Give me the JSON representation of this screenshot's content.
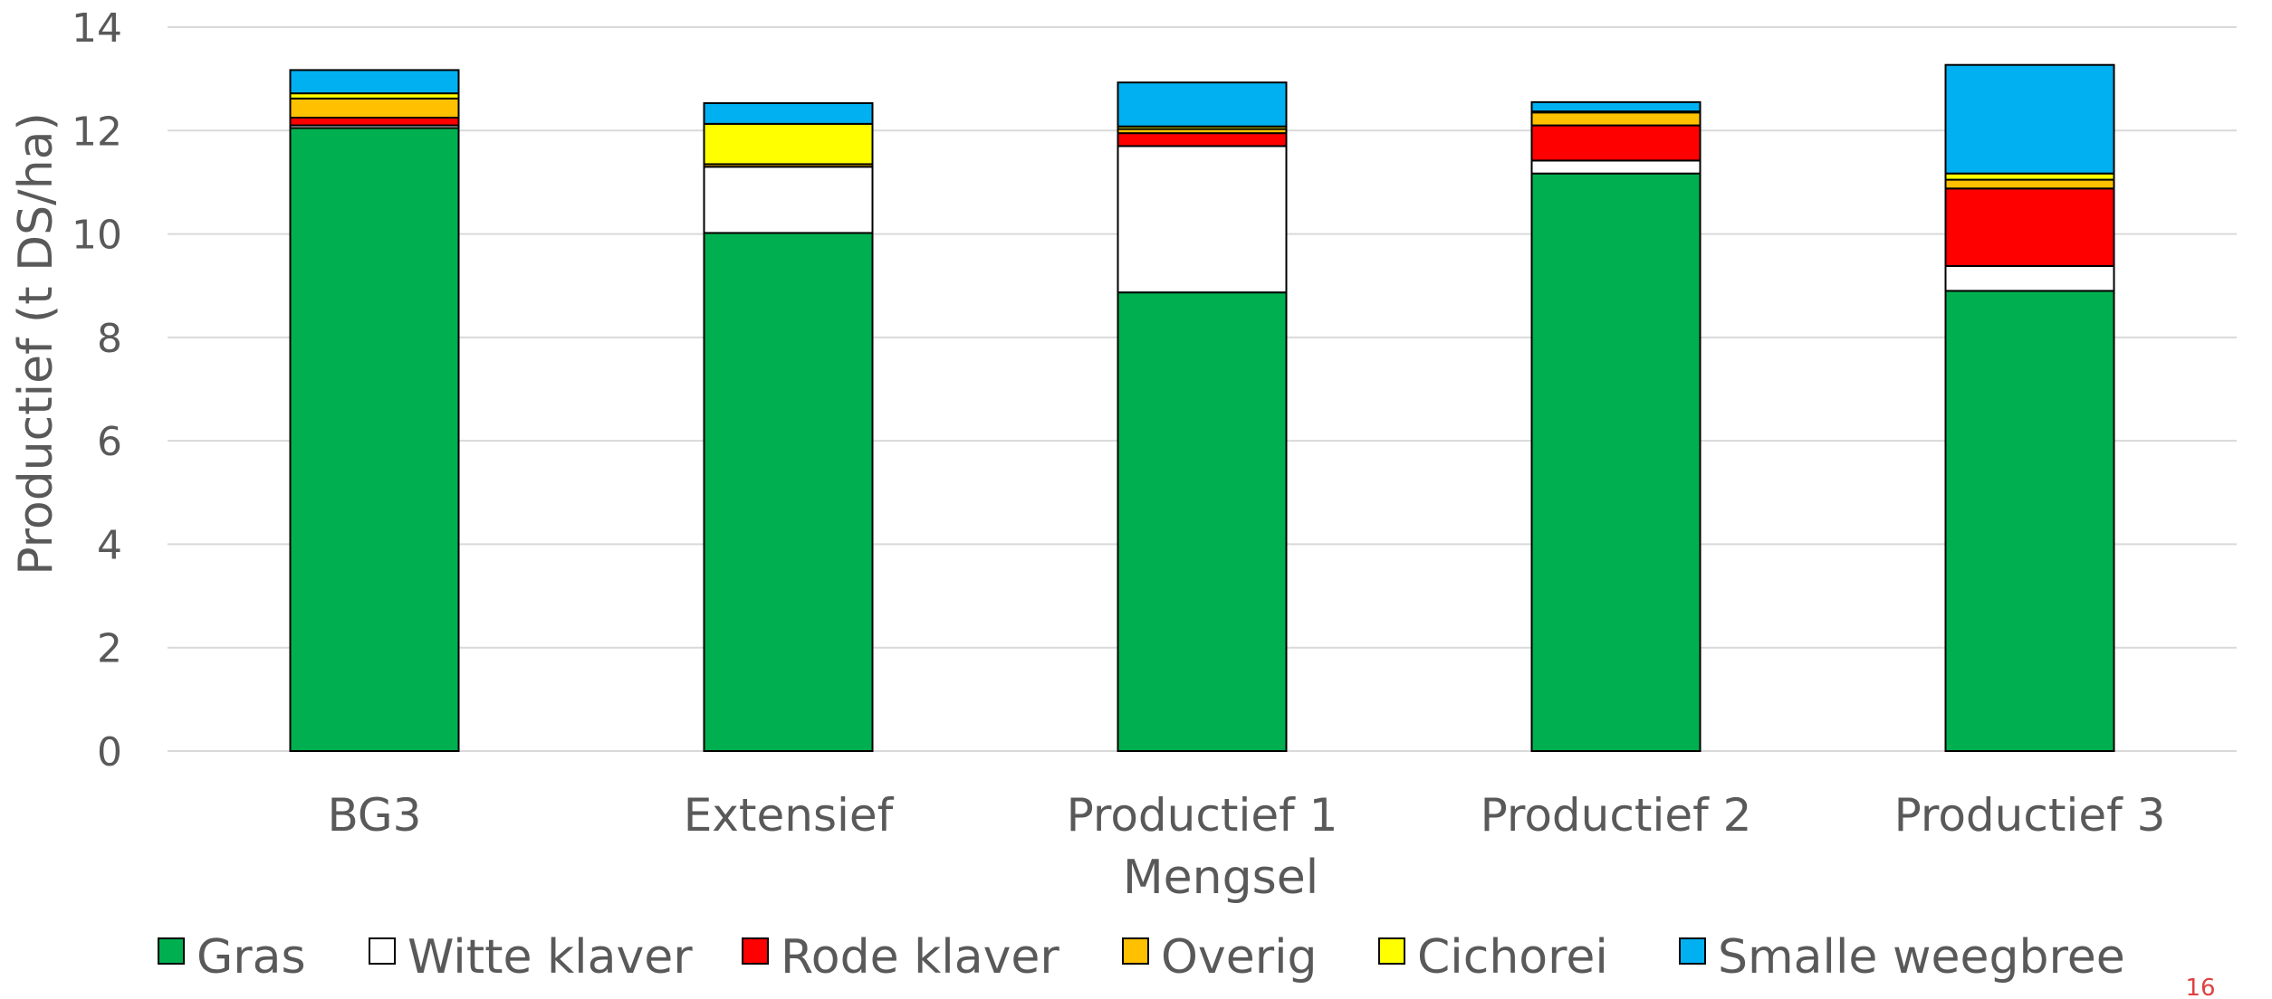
{
  "chart_data": {
    "type": "bar",
    "stacked": true,
    "title": "",
    "xlabel": "Mengsel",
    "ylabel": "Productief (t DS/ha)",
    "ylim": [
      0,
      14
    ],
    "yticks": [
      0,
      2,
      4,
      6,
      8,
      10,
      12,
      14
    ],
    "grid": true,
    "legend_position": "bottom",
    "categories": [
      "BG3",
      "Extensief",
      "Productief 1",
      "Productief 2",
      "Productief 3"
    ],
    "series": [
      {
        "name": "Gras",
        "color": "#00b050",
        "values": [
          12.05,
          10.02,
          8.87,
          11.17,
          8.9
        ]
      },
      {
        "name": "Witte klaver",
        "color": "#ffffff",
        "values": [
          0.05,
          1.28,
          2.83,
          0.25,
          0.48
        ]
      },
      {
        "name": "Rode klaver",
        "color": "#ff0000",
        "values": [
          0.15,
          0.0,
          0.25,
          0.68,
          1.5
        ]
      },
      {
        "name": "Overig",
        "color": "#ffc000",
        "values": [
          0.37,
          0.05,
          0.08,
          0.25,
          0.17
        ]
      },
      {
        "name": "Cichorei",
        "color": "#ffff00",
        "values": [
          0.1,
          0.78,
          0.05,
          0.02,
          0.12
        ]
      },
      {
        "name": "Smalle weegbree",
        "color": "#00b0f0",
        "values": [
          0.45,
          0.4,
          0.85,
          0.18,
          2.1
        ]
      }
    ]
  },
  "page_number": "16"
}
